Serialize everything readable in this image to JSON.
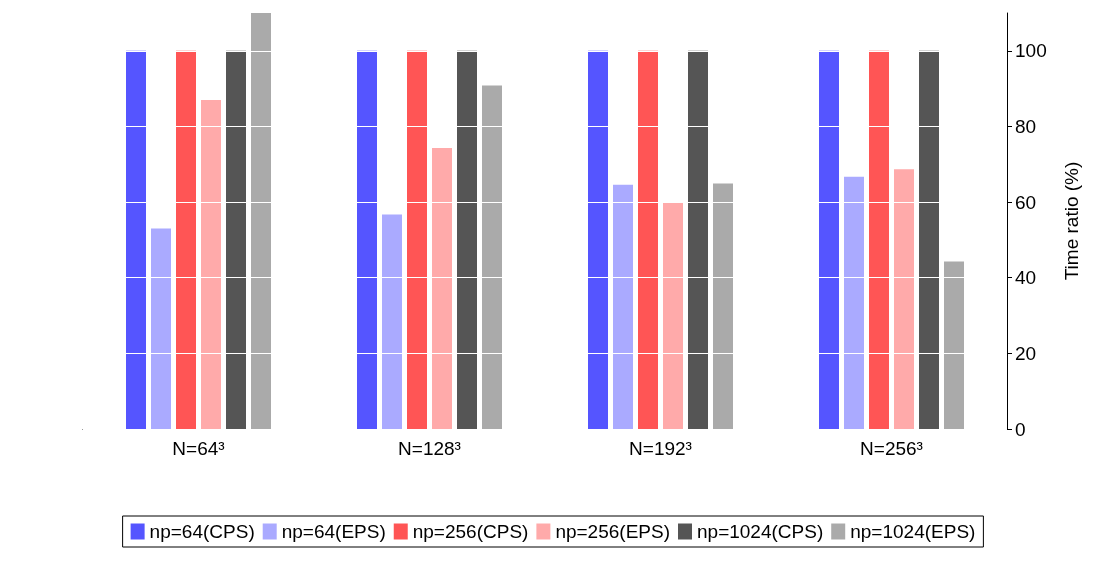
{
  "chart_data": {
    "type": "bar",
    "ylabel": "Time ratio (%)",
    "categories": [
      "N=64³",
      "N=128³",
      "N=192³",
      "N=256³"
    ],
    "series": [
      {
        "name": "np=64(CPS)",
        "color": "#5555ff",
        "values": [
          100,
          100,
          100,
          100
        ]
      },
      {
        "name": "np=64(EPS)",
        "color": "#aaaaff",
        "values": [
          53,
          56.7,
          64.6,
          66.7
        ]
      },
      {
        "name": "np=256(CPS)",
        "color": "#ff5555",
        "values": [
          100,
          100,
          100,
          100
        ]
      },
      {
        "name": "np=256(EPS)",
        "color": "#ffaaaa",
        "values": [
          87,
          74.3,
          60,
          68.7
        ]
      },
      {
        "name": "np=1024(CPS)",
        "color": "#555555",
        "values": [
          100,
          100,
          100,
          100
        ]
      },
      {
        "name": "np=1024(EPS)",
        "color": "#aaaaaa",
        "values": [
          110,
          90.8,
          64.9,
          44.3
        ]
      }
    ],
    "ylim": [
      0,
      110
    ],
    "yticks": [
      0,
      20,
      40,
      60,
      80,
      100
    ],
    "grid": "y",
    "legend": "bottom"
  }
}
